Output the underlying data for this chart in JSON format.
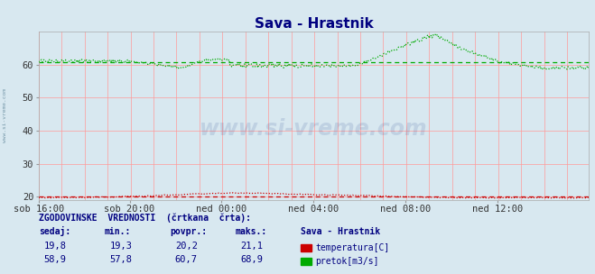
{
  "title": "Sava - Hrastnik",
  "title_color": "#000080",
  "bg_color": "#d8e8f0",
  "plot_bg_color": "#d8e8f0",
  "grid_color_v": "#ff9999",
  "grid_color_h": "#ff9999",
  "xlabel_ticks": [
    "sob 16:00",
    "sob 20:00",
    "ned 00:00",
    "ned 04:00",
    "ned 08:00",
    "ned 12:00"
  ],
  "xtick_positions_norm": [
    0.0,
    0.1667,
    0.3333,
    0.5,
    0.6667,
    0.8333
  ],
  "total_points": 576,
  "ylim": [
    19,
    70
  ],
  "yticks": [
    20,
    30,
    40,
    50,
    60
  ],
  "temp_avg": 20.2,
  "temp_min": 19.3,
  "temp_max": 21.1,
  "temp_current": 19.8,
  "flow_avg": 60.7,
  "flow_min": 57.8,
  "flow_max": 68.9,
  "flow_current": 58.9,
  "temp_color": "#cc0000",
  "flow_color": "#00aa00",
  "watermark_text": "www.si-vreme.com",
  "watermark_color": "#1a3a8a",
  "watermark_alpha": 0.13,
  "side_label_color": "#7799aa",
  "footer_label_color": "#000080",
  "footer_value_color": "#000080",
  "station_label_color": "#000080",
  "legend_red_color": "#cc0000",
  "legend_green_color": "#00aa00",
  "num_vgrid": 24,
  "num_hgrid": 10
}
